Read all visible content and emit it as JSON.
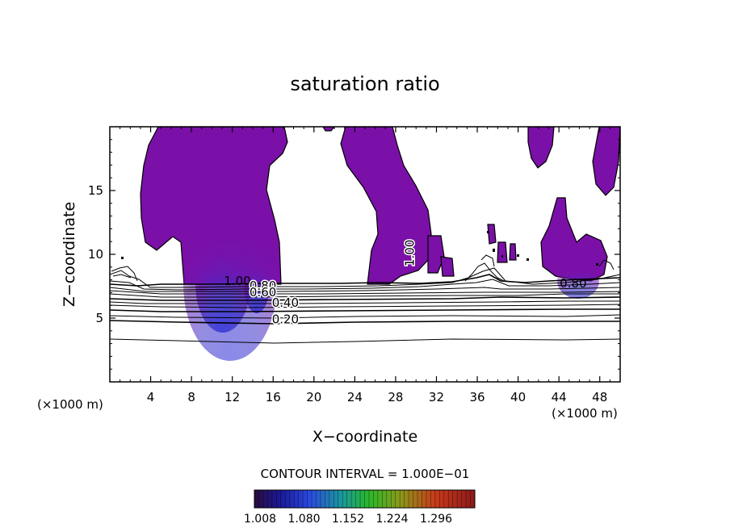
{
  "chart_data": {
    "type": "contour",
    "title": "saturation ratio",
    "xlabel": "X−coordinate",
    "ylabel": "Z−coordinate",
    "x_unit_left": "(×1000 m)",
    "x_unit_right": "(×1000 m)",
    "xlim": [
      0,
      50
    ],
    "ylim": [
      0,
      20
    ],
    "x_ticks": [
      4,
      8,
      12,
      16,
      20,
      24,
      28,
      32,
      36,
      40,
      44,
      48
    ],
    "y_ticks": [
      5,
      10,
      15
    ],
    "contour_labels": [
      {
        "text": "1.00",
        "x": 12.5,
        "z": 7.6
      },
      {
        "text": "0.80",
        "x": 15.0,
        "z": 7.2
      },
      {
        "text": "0.60",
        "x": 15.0,
        "z": 6.7
      },
      {
        "text": "0.40",
        "x": 17.2,
        "z": 5.9
      },
      {
        "text": "0.20",
        "x": 17.2,
        "z": 4.6
      },
      {
        "text": "1.00",
        "x": 29.8,
        "z": 10.1
      },
      {
        "text": "0.80",
        "x": 45.4,
        "z": 7.4
      }
    ],
    "contour_interval_text": "CONTOUR INTERVAL = 1.000E−01",
    "colorbar": {
      "labels": [
        "1.008",
        "1.080",
        "1.152",
        "1.224",
        "1.296"
      ],
      "colors": [
        "#2a0a3c",
        "#1c1ccc",
        "#1a8f9a",
        "#2ab82a",
        "#9a8a1a",
        "#c83a1a",
        "#8c1a1a"
      ]
    },
    "fill_color": "#7a10a8",
    "grid": false,
    "legend": "none"
  }
}
